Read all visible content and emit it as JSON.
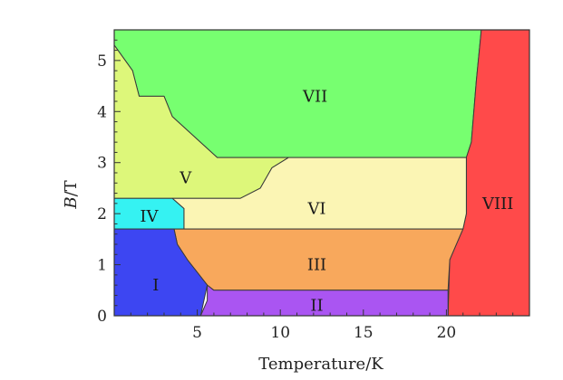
{
  "chart_data": {
    "type": "area",
    "title": "",
    "xlabel": "Temperature/K",
    "ylabel_italic": "B",
    "ylabel_rest": "/T",
    "xlim": [
      0,
      25
    ],
    "ylim": [
      0,
      5.6
    ],
    "x_ticks": [
      5,
      10,
      15,
      20
    ],
    "y_ticks": [
      0,
      1,
      2,
      3,
      4,
      5
    ],
    "grid": false,
    "regions": [
      {
        "label": "VII",
        "color": "#77ff70",
        "label_at": [
          12.1,
          4.3
        ],
        "boundary": [
          [
            0,
            5.6
          ],
          [
            22.1,
            5.6
          ],
          [
            21.8,
            4.6
          ],
          [
            21.5,
            3.4
          ],
          [
            21.2,
            3.1
          ],
          [
            11,
            3.1
          ],
          [
            6.2,
            3.1
          ],
          [
            3.5,
            3.9
          ],
          [
            3,
            4.3
          ],
          [
            1.5,
            4.3
          ],
          [
            1.1,
            4.8
          ],
          [
            0,
            5.3
          ]
        ]
      },
      {
        "label": "VIII",
        "color": "#ff4a4a",
        "label_at": [
          23.1,
          2.2
        ],
        "boundary": [
          [
            22.1,
            5.6
          ],
          [
            25,
            5.6
          ],
          [
            25,
            0
          ],
          [
            20.1,
            0
          ],
          [
            20.2,
            1.1
          ],
          [
            21,
            1.7
          ],
          [
            21.2,
            2
          ],
          [
            21.2,
            3.1
          ],
          [
            21.5,
            3.4
          ],
          [
            21.8,
            4.6
          ]
        ]
      },
      {
        "label": "V",
        "color": "#ddf77a",
        "label_at": [
          4.3,
          2.7
        ],
        "boundary": [
          [
            0,
            5.3
          ],
          [
            1.1,
            4.8
          ],
          [
            1.5,
            4.3
          ],
          [
            3,
            4.3
          ],
          [
            3.5,
            3.9
          ],
          [
            6.2,
            3.1
          ],
          [
            10.5,
            3.1
          ],
          [
            9.5,
            2.9
          ],
          [
            8.8,
            2.5
          ],
          [
            7.6,
            2.3
          ],
          [
            0,
            2.3
          ]
        ]
      },
      {
        "label": "VI",
        "color": "#fbf5b4",
        "label_at": [
          12.2,
          2.1
        ],
        "boundary": [
          [
            10.5,
            3.1
          ],
          [
            21.2,
            3.1
          ],
          [
            21.2,
            2
          ],
          [
            21,
            1.7
          ],
          [
            4.2,
            1.7
          ],
          [
            4.2,
            2.1
          ],
          [
            3.5,
            2.3
          ],
          [
            7.6,
            2.3
          ],
          [
            8.8,
            2.5
          ],
          [
            9.5,
            2.9
          ]
        ]
      },
      {
        "label": "IV",
        "color": "#35f2f2",
        "label_at": [
          2.1,
          1.95
        ],
        "boundary": [
          [
            0,
            2.3
          ],
          [
            3.5,
            2.3
          ],
          [
            4.2,
            2.1
          ],
          [
            4.2,
            1.7
          ],
          [
            0,
            1.7
          ]
        ]
      },
      {
        "label": "III",
        "color": "#f8a85c",
        "label_at": [
          12.2,
          1.0
        ],
        "boundary": [
          [
            3.6,
            1.7
          ],
          [
            21,
            1.7
          ],
          [
            20.2,
            1.1
          ],
          [
            20.1,
            0.5
          ],
          [
            6,
            0.5
          ],
          [
            5.6,
            0.6
          ],
          [
            4.4,
            1.1
          ],
          [
            3.8,
            1.4
          ]
        ]
      },
      {
        "label": "I",
        "color": "#3d46f2",
        "label_at": [
          2.5,
          0.6
        ],
        "boundary": [
          [
            0,
            1.7
          ],
          [
            3.6,
            1.7
          ],
          [
            3.8,
            1.4
          ],
          [
            4.4,
            1.1
          ],
          [
            5.6,
            0.6
          ],
          [
            5.2,
            0
          ],
          [
            0,
            0
          ]
        ]
      },
      {
        "label": "II",
        "color": "#aa55f2",
        "label_at": [
          12.2,
          0.2
        ],
        "boundary": [
          [
            6,
            0.5
          ],
          [
            20.1,
            0.5
          ],
          [
            20.1,
            0
          ],
          [
            5.2,
            0
          ],
          [
            5.6,
            0.3
          ],
          [
            5.6,
            0.6
          ]
        ]
      }
    ]
  }
}
